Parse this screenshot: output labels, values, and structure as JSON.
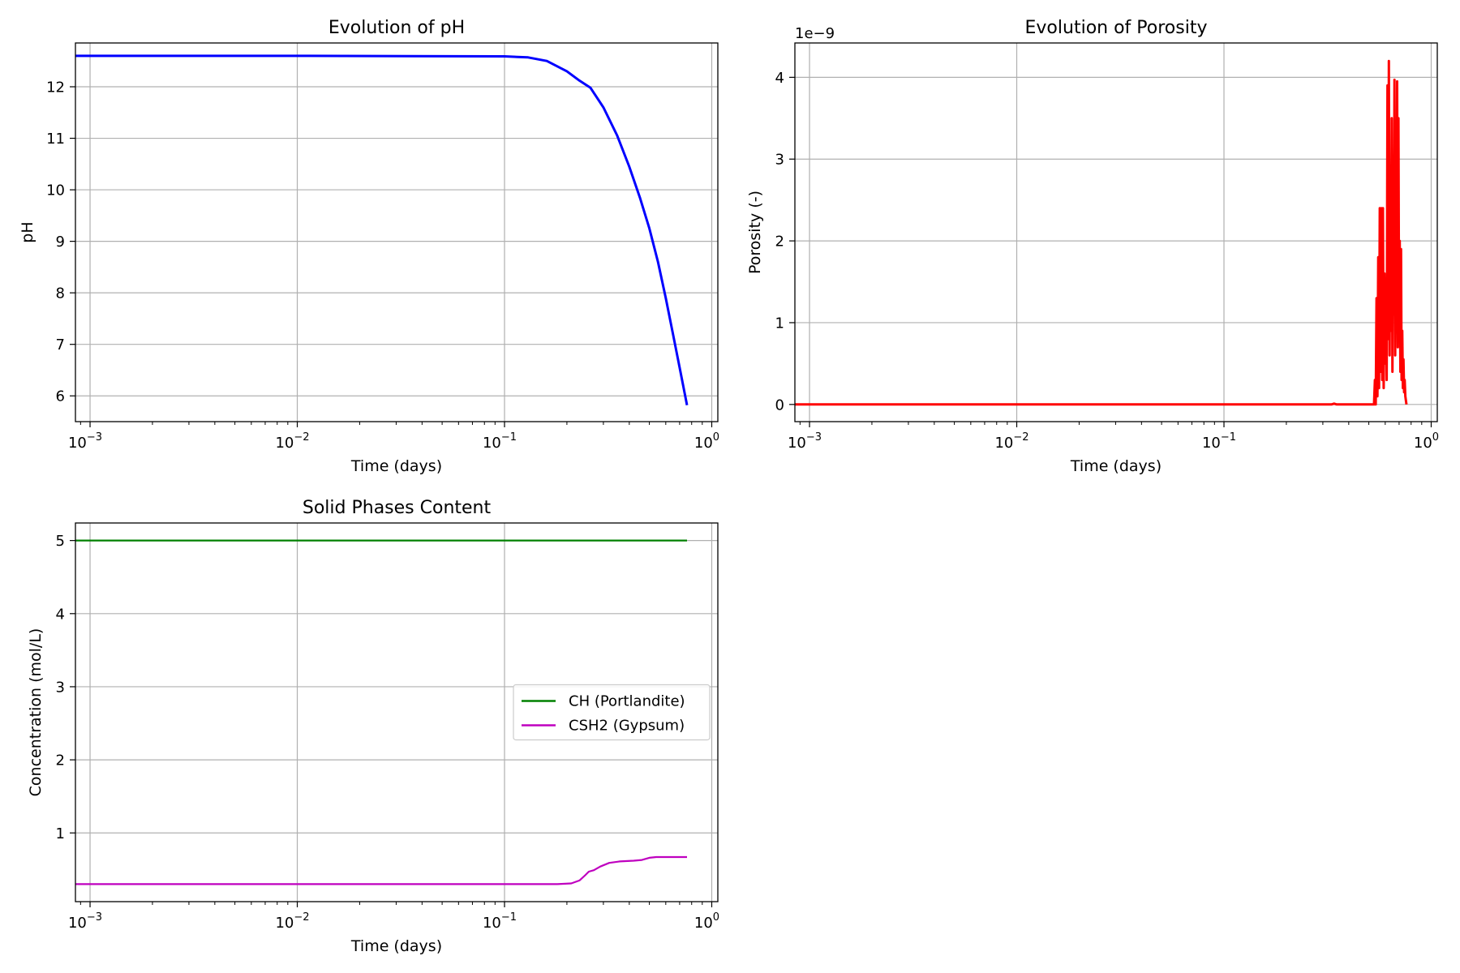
{
  "chart_data": [
    {
      "id": "ph",
      "type": "line",
      "title": "Evolution of pH",
      "xlabel": "Time (days)",
      "ylabel": "pH",
      "xscale": "log",
      "xlim": [
        0.00085,
        1.07
      ],
      "ylim": [
        5.5,
        12.85
      ],
      "xticks": [
        0.001,
        0.01,
        0.1,
        1
      ],
      "xtick_labels": [
        [
          "10",
          "−3"
        ],
        [
          "10",
          "−2"
        ],
        [
          "10",
          "−1"
        ],
        [
          "10",
          "0"
        ]
      ],
      "yticks": [
        6,
        7,
        8,
        9,
        10,
        11,
        12
      ],
      "ytick_labels": [
        "6",
        "7",
        "8",
        "9",
        "10",
        "11",
        "12"
      ],
      "grid": true,
      "series": [
        {
          "color": "#0000ff",
          "x": [
            0.00085,
            0.01,
            0.1,
            0.13,
            0.16,
            0.2,
            0.23,
            0.26,
            0.3,
            0.35,
            0.4,
            0.45,
            0.5,
            0.55,
            0.6,
            0.65,
            0.7,
            0.76
          ],
          "y": [
            12.6,
            12.6,
            12.59,
            12.57,
            12.5,
            12.3,
            12.12,
            11.98,
            11.6,
            11.05,
            10.45,
            9.85,
            9.25,
            8.6,
            7.9,
            7.2,
            6.55,
            5.82
          ]
        }
      ]
    },
    {
      "id": "porosity",
      "type": "line",
      "title": "Evolution of Porosity",
      "xlabel": "Time (days)",
      "ylabel": "Porosity (-)",
      "offset_label": "1e−9",
      "xscale": "log",
      "xlim": [
        0.00085,
        1.07
      ],
      "ylim": [
        -0.21,
        4.42
      ],
      "xticks": [
        0.001,
        0.01,
        0.1,
        1
      ],
      "xtick_labels": [
        [
          "10",
          "−3"
        ],
        [
          "10",
          "−2"
        ],
        [
          "10",
          "−1"
        ],
        [
          "10",
          "0"
        ]
      ],
      "yticks": [
        0,
        1,
        2,
        3,
        4
      ],
      "ytick_labels": [
        "0",
        "1",
        "2",
        "3",
        "4"
      ],
      "grid": true,
      "series": [
        {
          "color": "#ff0000",
          "x": [
            0.00085,
            0.33,
            0.34,
            0.35,
            0.36,
            0.53,
            0.535,
            0.54,
            0.545,
            0.55,
            0.555,
            0.56,
            0.565,
            0.57,
            0.575,
            0.58,
            0.585,
            0.59,
            0.595,
            0.6,
            0.605,
            0.61,
            0.615,
            0.62,
            0.625,
            0.63,
            0.635,
            0.64,
            0.645,
            0.65,
            0.655,
            0.66,
            0.665,
            0.67,
            0.675,
            0.68,
            0.685,
            0.69,
            0.695,
            0.7,
            0.705,
            0.71,
            0.715,
            0.72,
            0.725,
            0.73,
            0.735,
            0.74,
            0.745,
            0.75,
            0.755,
            0.76
          ],
          "y": [
            0,
            0,
            0.01,
            0,
            0,
            0,
            0.3,
            0,
            1.3,
            0.1,
            1.8,
            0.2,
            2.4,
            0.4,
            2.4,
            0.3,
            2.4,
            0.2,
            1.6,
            0.5,
            1.3,
            0.3,
            3.9,
            0.8,
            4.2,
            0.6,
            2.5,
            0.9,
            3.5,
            0.4,
            2.7,
            1.1,
            3.97,
            0.6,
            2.1,
            1.6,
            3.95,
            0.7,
            3.5,
            0.8,
            2.0,
            0.4,
            1.9,
            0.3,
            0.9,
            0.2,
            0.55,
            0.15,
            0.3,
            0.1,
            0.05,
            0
          ]
        }
      ]
    },
    {
      "id": "solids",
      "type": "line",
      "title": "Solid Phases Content",
      "xlabel": "Time (days)",
      "ylabel": "Concentration (mol/L)",
      "xscale": "log",
      "xlim": [
        0.00085,
        1.07
      ],
      "ylim": [
        0.06,
        5.24
      ],
      "xticks": [
        0.001,
        0.01,
        0.1,
        1
      ],
      "xtick_labels": [
        [
          "10",
          "−3"
        ],
        [
          "10",
          "−2"
        ],
        [
          "10",
          "−1"
        ],
        [
          "10",
          "0"
        ]
      ],
      "yticks": [
        1,
        2,
        3,
        4,
        5
      ],
      "ytick_labels": [
        "1",
        "2",
        "3",
        "4",
        "5"
      ],
      "grid": true,
      "legend": "center-right",
      "series": [
        {
          "name": "CH (Portlandite)",
          "color": "#008000",
          "x": [
            0.00085,
            0.76
          ],
          "y": [
            5.0,
            5.0
          ]
        },
        {
          "name": "CSH2 (Gypsum)",
          "color": "#bf00bf",
          "x": [
            0.00085,
            0.01,
            0.1,
            0.18,
            0.21,
            0.23,
            0.245,
            0.255,
            0.27,
            0.29,
            0.32,
            0.36,
            0.42,
            0.46,
            0.5,
            0.54,
            0.6,
            0.76
          ],
          "y": [
            0.3,
            0.3,
            0.3,
            0.3,
            0.31,
            0.35,
            0.42,
            0.47,
            0.49,
            0.54,
            0.59,
            0.61,
            0.62,
            0.63,
            0.66,
            0.67,
            0.67,
            0.67
          ]
        }
      ]
    }
  ]
}
